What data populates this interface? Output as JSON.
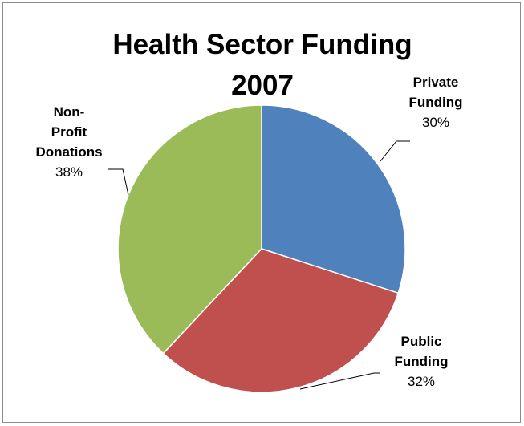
{
  "chart_data": {
    "type": "pie",
    "title": "Health Sector Funding 2007",
    "title_lines": [
      "Health Sector Funding",
      "2007"
    ],
    "slices": [
      {
        "label": "Private Funding",
        "label_lines": [
          "Private",
          "Funding"
        ],
        "value": 30,
        "value_label": "30%",
        "color": "#4f81bd"
      },
      {
        "label": "Public Funding",
        "label_lines": [
          "Public",
          "Funding"
        ],
        "value": 32,
        "value_label": "32%",
        "color": "#c0504d"
      },
      {
        "label": "Non-Profit Donations",
        "label_lines": [
          "Non-",
          "Profit",
          "Donations"
        ],
        "value": 38,
        "value_label": "38%",
        "color": "#9bbb59"
      }
    ],
    "start_angle": "12 o'clock",
    "direction": "clockwise",
    "legend": "none",
    "data_labels": "outside with leader lines"
  }
}
